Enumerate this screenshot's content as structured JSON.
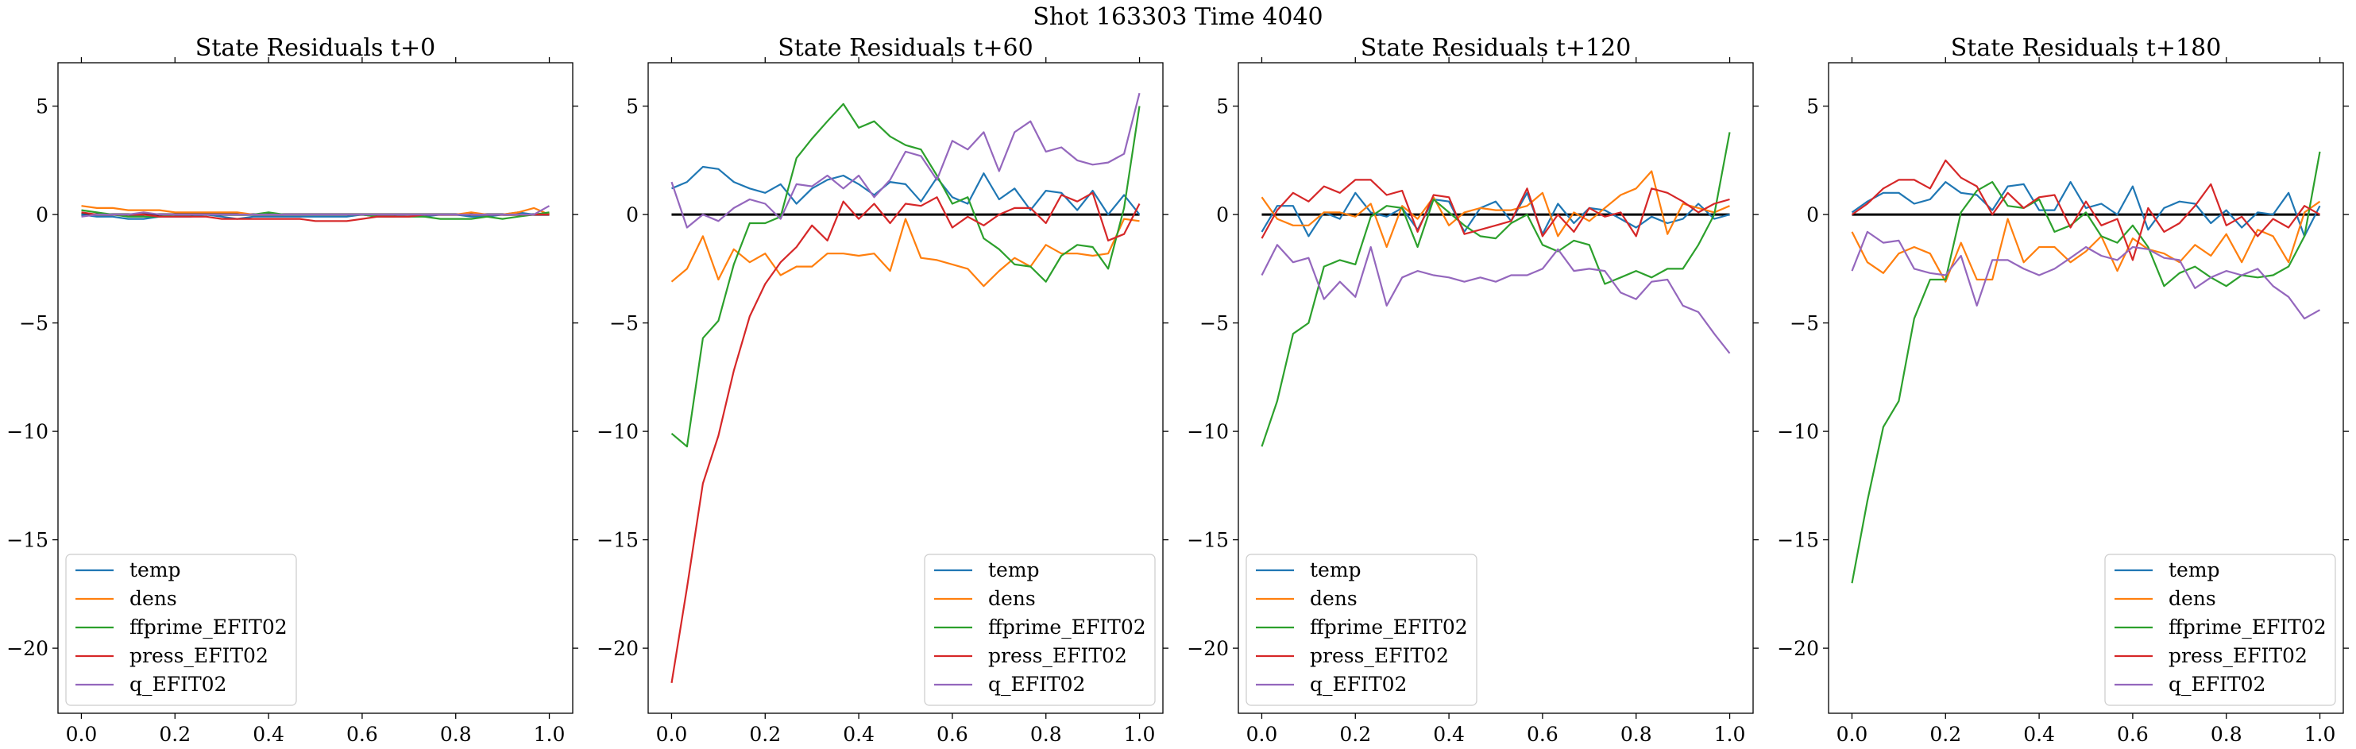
{
  "figure": {
    "suptitle": "Shot 163303   Time 4040"
  },
  "colors": {
    "temp": "#1f77b4",
    "dens": "#ff7f0e",
    "ffprime_EFIT02": "#2ca02c",
    "press_EFIT02": "#d62728",
    "q_EFIT02": "#9467bd",
    "zero_line": "#000000"
  },
  "chart_data": [
    {
      "type": "line",
      "title": "State Residuals t+0",
      "xlabel": "",
      "ylabel": "",
      "xlim": [
        -0.05,
        1.05
      ],
      "ylim": [
        -23,
        7
      ],
      "xticks": [
        "0.0",
        "0.2",
        "0.4",
        "0.6",
        "0.8",
        "1.0"
      ],
      "yticks": [
        "5",
        "0",
        "−5",
        "−10",
        "−15",
        "−20"
      ],
      "grid": false,
      "legend_position": "lower-left",
      "zero_line": true,
      "x": [
        0.0,
        0.033,
        0.067,
        0.1,
        0.133,
        0.167,
        0.2,
        0.233,
        0.267,
        0.3,
        0.333,
        0.367,
        0.4,
        0.433,
        0.467,
        0.5,
        0.533,
        0.567,
        0.6,
        0.633,
        0.667,
        0.7,
        0.733,
        0.767,
        0.8,
        0.833,
        0.867,
        0.9,
        0.933,
        0.967,
        1.0
      ],
      "series": [
        {
          "name": "temp",
          "values": [
            0.0,
            -0.1,
            -0.1,
            -0.2,
            -0.2,
            -0.1,
            -0.1,
            -0.1,
            0.0,
            -0.1,
            -0.2,
            -0.1,
            -0.1,
            -0.1,
            -0.1,
            -0.1,
            -0.1,
            -0.1,
            0.0,
            -0.1,
            -0.1,
            0.0,
            -0.1,
            0.0,
            0.0,
            -0.1,
            -0.1,
            0.0,
            0.1,
            0.0,
            0.0
          ]
        },
        {
          "name": "dens",
          "values": [
            0.4,
            0.3,
            0.3,
            0.2,
            0.2,
            0.2,
            0.1,
            0.1,
            0.1,
            0.1,
            0.1,
            0.0,
            0.0,
            0.0,
            0.0,
            0.0,
            0.0,
            0.0,
            0.0,
            0.0,
            0.0,
            0.0,
            0.0,
            0.0,
            0.0,
            0.1,
            0.0,
            0.0,
            0.1,
            0.3,
            0.0
          ]
        },
        {
          "name": "ffprime_EFIT02",
          "values": [
            0.2,
            0.1,
            0.0,
            -0.1,
            -0.1,
            -0.1,
            0.0,
            0.0,
            0.0,
            0.0,
            0.0,
            0.0,
            0.1,
            0.0,
            0.0,
            0.0,
            0.0,
            0.0,
            0.0,
            -0.1,
            -0.1,
            -0.1,
            -0.1,
            -0.2,
            -0.2,
            -0.2,
            -0.1,
            -0.2,
            -0.1,
            0.0,
            0.1
          ]
        },
        {
          "name": "press_EFIT02",
          "values": [
            0.1,
            0.0,
            0.0,
            0.0,
            0.0,
            -0.1,
            -0.1,
            -0.1,
            -0.1,
            -0.2,
            -0.2,
            -0.2,
            -0.2,
            -0.2,
            -0.2,
            -0.3,
            -0.3,
            -0.3,
            -0.2,
            -0.1,
            -0.1,
            -0.1,
            0.0,
            0.0,
            0.0,
            0.0,
            0.0,
            0.0,
            0.0,
            0.0,
            0.0
          ]
        },
        {
          "name": "q_EFIT02",
          "values": [
            -0.1,
            0.0,
            0.0,
            0.0,
            0.1,
            0.0,
            0.0,
            0.0,
            0.0,
            0.0,
            0.0,
            0.0,
            0.0,
            0.0,
            0.0,
            0.0,
            0.0,
            0.0,
            0.0,
            0.0,
            0.0,
            0.0,
            0.0,
            0.0,
            0.0,
            0.0,
            0.0,
            0.0,
            0.0,
            0.0,
            0.4
          ]
        }
      ]
    },
    {
      "type": "line",
      "title": "State Residuals t+60",
      "xlabel": "",
      "ylabel": "",
      "xlim": [
        -0.05,
        1.05
      ],
      "ylim": [
        -23,
        7
      ],
      "xticks": [
        "0.0",
        "0.2",
        "0.4",
        "0.6",
        "0.8",
        "1.0"
      ],
      "yticks": [
        "5",
        "0",
        "−5",
        "−10",
        "−15",
        "−20"
      ],
      "grid": false,
      "legend_position": "lower-right",
      "zero_line": true,
      "x": [
        0.0,
        0.033,
        0.067,
        0.1,
        0.133,
        0.167,
        0.2,
        0.233,
        0.267,
        0.3,
        0.333,
        0.367,
        0.4,
        0.433,
        0.467,
        0.5,
        0.533,
        0.567,
        0.6,
        0.633,
        0.667,
        0.7,
        0.733,
        0.767,
        0.8,
        0.833,
        0.867,
        0.9,
        0.933,
        0.967,
        1.0
      ],
      "series": [
        {
          "name": "temp",
          "values": [
            1.2,
            1.5,
            2.2,
            2.1,
            1.5,
            1.2,
            1.0,
            1.4,
            0.5,
            1.2,
            1.6,
            1.8,
            1.4,
            0.9,
            1.5,
            1.4,
            0.6,
            1.7,
            0.8,
            0.5,
            1.9,
            0.7,
            1.2,
            0.2,
            1.1,
            1.0,
            0.2,
            1.1,
            0.0,
            0.9,
            0.0
          ]
        },
        {
          "name": "dens",
          "values": [
            -3.1,
            -2.5,
            -1.0,
            -3.0,
            -1.6,
            -2.2,
            -1.8,
            -2.8,
            -2.4,
            -2.4,
            -1.8,
            -1.8,
            -1.9,
            -1.8,
            -2.6,
            -0.2,
            -2.0,
            -2.1,
            -2.3,
            -2.5,
            -3.3,
            -2.6,
            -2.0,
            -2.4,
            -1.4,
            -1.8,
            -1.8,
            -1.9,
            -1.8,
            -0.2,
            -0.3
          ]
        },
        {
          "name": "ffprime_EFIT02",
          "values": [
            -10.1,
            -10.7,
            -5.7,
            -4.9,
            -2.3,
            -0.4,
            -0.4,
            -0.1,
            2.6,
            3.5,
            4.3,
            5.1,
            4.0,
            4.3,
            3.6,
            3.2,
            3.0,
            1.8,
            0.5,
            0.8,
            -1.1,
            -1.6,
            -2.3,
            -2.4,
            -3.1,
            -1.9,
            -1.4,
            -1.5,
            -2.5,
            0.3,
            5.0
          ]
        },
        {
          "name": "press_EFIT02",
          "values": [
            -21.6,
            -17.2,
            -12.4,
            -10.2,
            -7.2,
            -4.7,
            -3.2,
            -2.2,
            -1.5,
            -0.5,
            -1.2,
            0.6,
            -0.2,
            0.5,
            -0.4,
            0.5,
            0.4,
            0.8,
            -0.6,
            -0.1,
            -0.5,
            0.0,
            0.3,
            0.3,
            -0.4,
            0.9,
            0.6,
            1.0,
            -1.2,
            -0.9,
            0.5
          ]
        },
        {
          "name": "q_EFIT02",
          "values": [
            1.5,
            -0.6,
            0.0,
            -0.3,
            0.3,
            0.7,
            0.5,
            -0.2,
            1.4,
            1.3,
            1.8,
            1.2,
            1.8,
            0.8,
            1.6,
            2.9,
            2.7,
            1.6,
            3.4,
            3.0,
            3.8,
            2.0,
            3.8,
            4.3,
            2.9,
            3.1,
            2.5,
            2.3,
            2.4,
            2.8,
            5.6
          ]
        }
      ]
    },
    {
      "type": "line",
      "title": "State Residuals t+120",
      "xlabel": "",
      "ylabel": "",
      "xlim": [
        -0.05,
        1.05
      ],
      "ylim": [
        -23,
        7
      ],
      "xticks": [
        "0.0",
        "0.2",
        "0.4",
        "0.6",
        "0.8",
        "1.0"
      ],
      "yticks": [
        "5",
        "0",
        "−5",
        "−10",
        "−15",
        "−20"
      ],
      "grid": false,
      "legend_position": "lower-left",
      "zero_line": true,
      "x": [
        0.0,
        0.033,
        0.067,
        0.1,
        0.133,
        0.167,
        0.2,
        0.233,
        0.267,
        0.3,
        0.333,
        0.367,
        0.4,
        0.433,
        0.467,
        0.5,
        0.533,
        0.567,
        0.6,
        0.633,
        0.667,
        0.7,
        0.733,
        0.767,
        0.8,
        0.833,
        0.867,
        0.9,
        0.933,
        0.967,
        1.0
      ],
      "series": [
        {
          "name": "temp",
          "values": [
            -0.8,
            0.4,
            0.4,
            -1.0,
            0.1,
            -0.2,
            1.0,
            0.1,
            -0.1,
            0.3,
            -0.7,
            0.7,
            0.6,
            -0.8,
            0.3,
            0.6,
            -0.3,
            1.0,
            -0.9,
            0.5,
            -0.4,
            0.3,
            0.2,
            -0.2,
            -0.6,
            -0.1,
            -0.4,
            -0.2,
            0.5,
            -0.2,
            0.0
          ]
        },
        {
          "name": "dens",
          "values": [
            0.8,
            -0.2,
            -0.5,
            -0.5,
            0.1,
            0.1,
            -0.1,
            0.5,
            -1.5,
            0.4,
            -0.2,
            0.8,
            -0.5,
            0.1,
            0.3,
            0.2,
            0.2,
            0.4,
            1.0,
            -1.0,
            0.1,
            -0.3,
            0.3,
            0.9,
            1.2,
            2.0,
            -0.9,
            0.5,
            0.3,
            0.1,
            0.4
          ]
        },
        {
          "name": "ffprime_EFIT02",
          "values": [
            -10.7,
            -8.6,
            -5.5,
            -5.0,
            -2.4,
            -2.1,
            -2.3,
            -0.1,
            0.4,
            0.3,
            -1.5,
            0.7,
            0.1,
            -0.5,
            -1.0,
            -1.1,
            -0.4,
            0.0,
            -1.4,
            -1.7,
            -1.2,
            -1.4,
            -3.2,
            -2.9,
            -2.6,
            -2.9,
            -2.5,
            -2.5,
            -1.4,
            0.0,
            3.8
          ]
        },
        {
          "name": "press_EFIT02",
          "values": [
            -1.1,
            0.2,
            1.0,
            0.6,
            1.3,
            1.0,
            1.6,
            1.6,
            0.9,
            1.1,
            -0.8,
            0.9,
            0.8,
            -0.9,
            -0.7,
            -0.5,
            -0.3,
            1.2,
            -1.0,
            0.0,
            -0.8,
            0.3,
            -0.1,
            0.1,
            -1.0,
            1.2,
            1.0,
            0.6,
            0.1,
            0.5,
            0.7
          ]
        },
        {
          "name": "q_EFIT02",
          "values": [
            -2.8,
            -1.4,
            -2.2,
            -2.0,
            -3.9,
            -3.1,
            -3.8,
            -1.5,
            -4.2,
            -2.9,
            -2.6,
            -2.8,
            -2.9,
            -3.1,
            -2.9,
            -3.1,
            -2.8,
            -2.8,
            -2.5,
            -1.6,
            -2.6,
            -2.5,
            -2.6,
            -3.6,
            -3.9,
            -3.1,
            -3.0,
            -4.2,
            -4.5,
            -5.5,
            -6.4
          ]
        }
      ]
    },
    {
      "type": "line",
      "title": "State Residuals t+180",
      "xlabel": "",
      "ylabel": "",
      "xlim": [
        -0.05,
        1.05
      ],
      "ylim": [
        -23,
        7
      ],
      "xticks": [
        "0.0",
        "0.2",
        "0.4",
        "0.6",
        "0.8",
        "1.0"
      ],
      "yticks": [
        "5",
        "0",
        "−5",
        "−10",
        "−15",
        "−20"
      ],
      "grid": false,
      "legend_position": "lower-right",
      "zero_line": true,
      "x": [
        0.0,
        0.033,
        0.067,
        0.1,
        0.133,
        0.167,
        0.2,
        0.233,
        0.267,
        0.3,
        0.333,
        0.367,
        0.4,
        0.433,
        0.467,
        0.5,
        0.533,
        0.567,
        0.6,
        0.633,
        0.667,
        0.7,
        0.733,
        0.767,
        0.8,
        0.833,
        0.867,
        0.9,
        0.933,
        0.967,
        1.0
      ],
      "series": [
        {
          "name": "temp",
          "values": [
            0.1,
            0.6,
            1.0,
            1.0,
            0.5,
            0.7,
            1.5,
            1.0,
            0.9,
            0.2,
            1.3,
            1.4,
            0.2,
            0.2,
            1.5,
            0.3,
            0.5,
            0.0,
            1.3,
            -0.7,
            0.3,
            0.6,
            0.5,
            -0.4,
            0.2,
            -0.6,
            0.1,
            0.0,
            1.0,
            -1.0,
            0.4
          ]
        },
        {
          "name": "dens",
          "values": [
            -0.8,
            -2.2,
            -2.7,
            -1.8,
            -1.5,
            -1.8,
            -3.1,
            -1.3,
            -3.0,
            -3.0,
            -0.2,
            -2.2,
            -1.5,
            -1.5,
            -2.2,
            -1.7,
            -1.0,
            -2.6,
            -1.1,
            -1.6,
            -1.8,
            -2.2,
            -1.4,
            -1.9,
            -0.9,
            -2.2,
            -0.7,
            -1.0,
            -2.2,
            0.1,
            0.6
          ]
        },
        {
          "name": "ffprime_EFIT02",
          "values": [
            -17.0,
            -13.2,
            -9.8,
            -8.6,
            -4.8,
            -3.0,
            -3.0,
            0.1,
            1.1,
            1.5,
            0.4,
            0.3,
            0.7,
            -0.8,
            -0.5,
            0.1,
            -1.0,
            -1.3,
            -0.5,
            -1.5,
            -3.3,
            -2.7,
            -2.4,
            -2.9,
            -3.3,
            -2.8,
            -2.9,
            -2.8,
            -2.4,
            -1.0,
            2.9
          ]
        },
        {
          "name": "press_EFIT02",
          "values": [
            0.0,
            0.5,
            1.2,
            1.6,
            1.6,
            1.2,
            2.5,
            1.7,
            1.3,
            0.0,
            1.0,
            0.3,
            0.8,
            0.9,
            -0.6,
            0.6,
            -0.5,
            -0.2,
            -2.1,
            0.3,
            -0.8,
            -0.4,
            0.4,
            1.4,
            -0.5,
            -0.1,
            -1.0,
            -0.2,
            -0.6,
            0.4,
            0.0
          ]
        },
        {
          "name": "q_EFIT02",
          "values": [
            -2.6,
            -0.8,
            -1.3,
            -1.2,
            -2.5,
            -2.7,
            -2.8,
            -1.9,
            -4.2,
            -2.1,
            -2.1,
            -2.5,
            -2.8,
            -2.5,
            -2.0,
            -1.5,
            -1.9,
            -2.1,
            -1.5,
            -1.6,
            -2.0,
            -2.1,
            -3.4,
            -2.9,
            -2.6,
            -2.8,
            -2.5,
            -3.3,
            -3.8,
            -4.8,
            -4.4
          ]
        }
      ]
    }
  ]
}
